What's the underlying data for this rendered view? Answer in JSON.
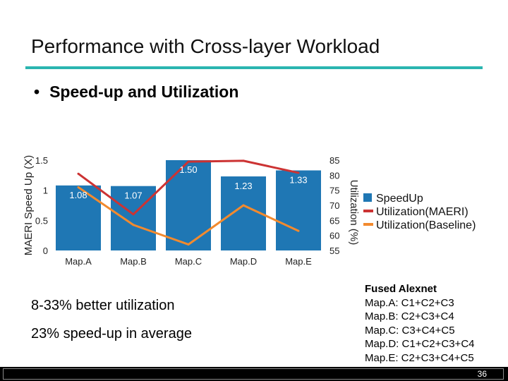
{
  "slide": {
    "title": "Performance with Cross-layer Workload",
    "bullet": "Speed-up and Utilization",
    "bullet_marker": "•",
    "note1": "8-33% better utilization",
    "note2": "23% speed-up in average",
    "fused": {
      "heading": "Fused Alexnet",
      "lines": [
        "Map.A: C1+C2+C3",
        "Map.B: C2+C3+C4",
        "Map.C: C3+C4+C5",
        "Map.D: C1+C2+C3+C4",
        "Map.E: C2+C3+C4+C5"
      ]
    },
    "page_number": "36"
  },
  "chart_data": {
    "type": "bar",
    "categories": [
      "Map.A",
      "Map.B",
      "Map.C",
      "Map.D",
      "Map.E"
    ],
    "ylabel": "MAERI Speed Up (X)",
    "ylabel_right": "Utilization (%)",
    "ylim": [
      0,
      1.5
    ],
    "y_ticks": [
      "0",
      "0.5",
      "1",
      "1.5"
    ],
    "ylim_right": [
      55,
      85
    ],
    "y_ticks_right": [
      "55",
      "60",
      "65",
      "70",
      "75",
      "80",
      "85"
    ],
    "bars": {
      "name": "SpeedUp",
      "values": [
        1.08,
        1.07,
        1.5,
        1.23,
        1.33
      ],
      "labels": [
        "1.08",
        "1.07",
        "1.50",
        "1.23",
        "1.33"
      ],
      "color": "#1f77b4"
    },
    "lines": [
      {
        "name": "Utilization(MAERI)",
        "values": [
          80.5,
          67,
          84.5,
          84.8,
          80.8
        ],
        "color": "#cc3333"
      },
      {
        "name": "Utilization(Baseline)",
        "values": [
          76,
          63.5,
          57,
          70,
          61.5
        ],
        "color": "#f28a2e"
      }
    ],
    "legend_position": "right",
    "grid": false
  }
}
